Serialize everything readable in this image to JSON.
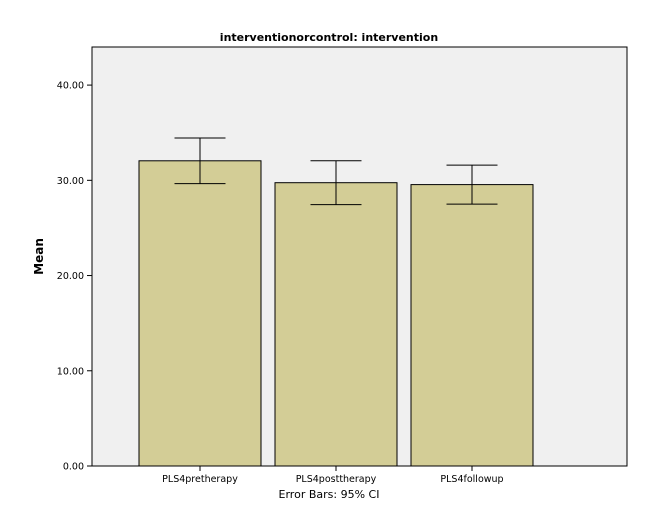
{
  "chart_data": {
    "type": "bar",
    "title": "interventionorcontrol: intervention",
    "xlabel": "",
    "ylabel": "Mean",
    "categories": [
      "PLS4pretherapy",
      "PLS4posttherapy",
      "PLS4followup"
    ],
    "values": [
      32.05,
      29.75,
      29.55
    ],
    "error_low": [
      29.65,
      27.45,
      27.5
    ],
    "error_high": [
      34.45,
      32.05,
      31.6
    ],
    "ylim": [
      0,
      44.0
    ],
    "yticks": [
      0,
      10,
      20,
      30,
      40
    ],
    "ytick_labels": [
      "0.00",
      "10.00",
      "20.00",
      "30.00",
      "40.00"
    ],
    "footnote": "Error Bars: 95% CI",
    "grid": false,
    "legend": "none",
    "colors": {
      "bar_fill": "#d3cd96",
      "bar_stroke": "#000000",
      "plot_background": "#f0f0f0",
      "error_bar": "#000000"
    }
  }
}
